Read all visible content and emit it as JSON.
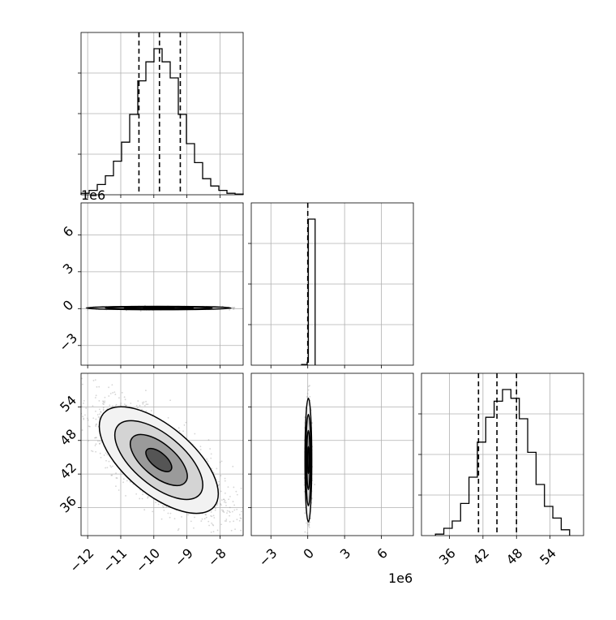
{
  "figure": {
    "offset_label_left": "1e6",
    "offset_label_bottom": "1e6"
  },
  "chart_data": [
    {
      "type": "histogram",
      "panel": "p1-marginal",
      "xlim": [
        -12.2,
        -7.3
      ],
      "bins": [
        -12.2,
        -11.955,
        -11.71,
        -11.465,
        -11.22,
        -10.975,
        -10.73,
        -10.485,
        -10.24,
        -9.995,
        -9.75,
        -9.505,
        -9.26,
        -9.015,
        -8.77,
        -8.525,
        -8.28,
        -8.035,
        -7.79,
        -7.545,
        -7.3
      ],
      "counts": [
        0.01,
        0.03,
        0.07,
        0.13,
        0.23,
        0.36,
        0.55,
        0.78,
        0.91,
        1.0,
        0.91,
        0.8,
        0.55,
        0.35,
        0.22,
        0.11,
        0.06,
        0.03,
        0.01,
        0.005
      ],
      "quantiles": [
        -10.45,
        -9.83,
        -9.2
      ],
      "grid": true
    },
    {
      "type": "scatter-density",
      "panel": "p1-vs-p2",
      "xlim": [
        -12.2,
        -7.3
      ],
      "ylim": [
        -4.6,
        8.6
      ],
      "ylabel_offset": "1e6",
      "yticks": [
        -3,
        0,
        3,
        6
      ],
      "grid": true
    },
    {
      "type": "histogram",
      "panel": "p2-marginal",
      "xlim": [
        -4.6,
        8.6
      ],
      "bins": [
        -0.5,
        -0.05,
        0.05,
        0.6
      ],
      "counts": [
        0.005,
        0.02,
        1.0
      ],
      "quantiles": [
        0.0
      ],
      "grid": true
    },
    {
      "type": "scatter-density",
      "panel": "p1-vs-p3",
      "xlim": [
        -12.2,
        -7.3
      ],
      "ylim": [
        31,
        60
      ],
      "xticks": [
        -12,
        -11,
        -10,
        -9,
        -8
      ],
      "yticks": [
        36,
        42,
        48,
        54
      ],
      "grid": true
    },
    {
      "type": "scatter-density",
      "panel": "p2-vs-p3",
      "xlim": [
        -4.6,
        8.6
      ],
      "ylim": [
        31,
        60
      ],
      "xticks": [
        -3,
        0,
        3,
        6
      ],
      "xlabel_offset": "1e6",
      "grid": true
    },
    {
      "type": "histogram",
      "panel": "p3-marginal",
      "xlim": [
        31,
        60
      ],
      "bins": [
        33.5,
        35,
        36.5,
        38,
        39.5,
        41,
        42.5,
        44,
        45.5,
        47,
        48.5,
        50,
        51.5,
        53,
        54.5,
        56,
        57.5
      ],
      "counts": [
        0.01,
        0.05,
        0.1,
        0.22,
        0.4,
        0.64,
        0.81,
        0.92,
        1.0,
        0.94,
        0.8,
        0.57,
        0.35,
        0.2,
        0.12,
        0.04
      ],
      "quantiles": [
        41.2,
        44.5,
        48.0
      ],
      "xticks": [
        36,
        42,
        48,
        54
      ],
      "grid": true
    }
  ]
}
